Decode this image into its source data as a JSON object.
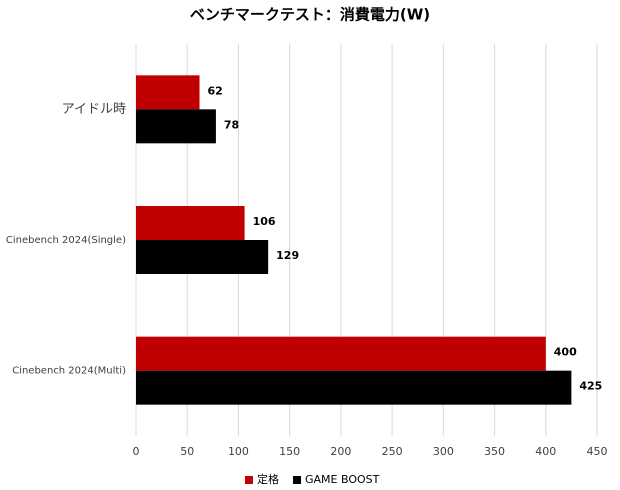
{
  "chart_data": {
    "type": "barh",
    "title": "ベンチマークテスト：消費電力(W)",
    "categories": [
      "アイドル時",
      "Cinebench 2024(Single)",
      "Cinebench 2024(Multi)"
    ],
    "series": [
      {
        "name": "定格",
        "color": "#c00000",
        "values": [
          62,
          106,
          400
        ]
      },
      {
        "name": "GAME BOOST",
        "color": "#000000",
        "values": [
          78,
          129,
          425
        ]
      }
    ],
    "xlim": [
      0,
      450
    ],
    "xticks": [
      0,
      50,
      100,
      150,
      200,
      250,
      300,
      350,
      400,
      450
    ],
    "grid": true,
    "legend": "bottom"
  }
}
